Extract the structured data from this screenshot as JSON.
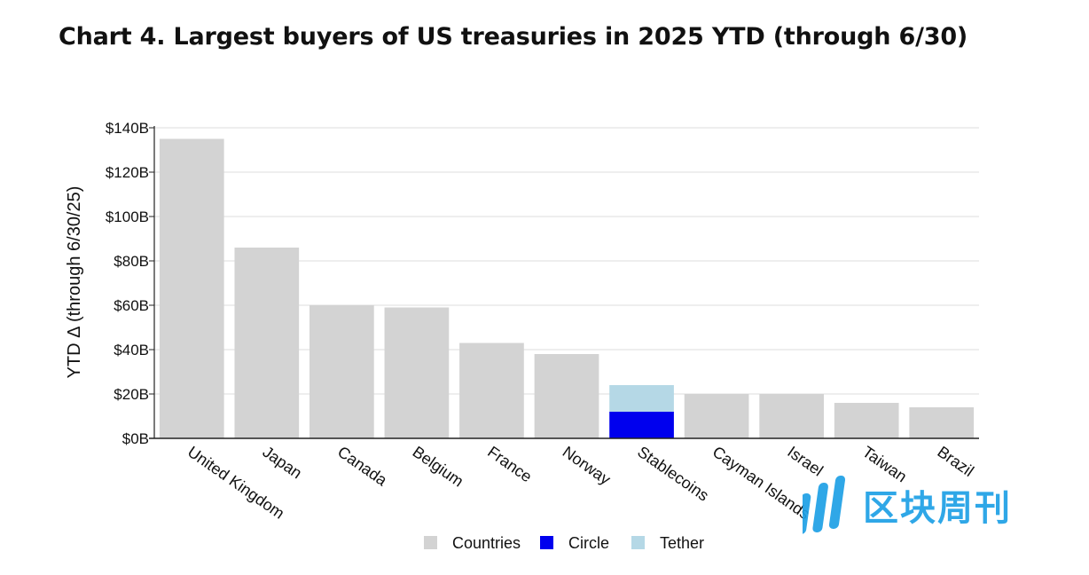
{
  "title": "Chart 4. Largest buyers of US treasuries in 2025 YTD (through 6/30)",
  "watermark": {
    "text": "区块周刊"
  },
  "colors": {
    "countries": "#d3d3d3",
    "circle": "#0000ee",
    "tether": "#b5d8e6",
    "grid": "#dddddd",
    "axis": "#222222"
  },
  "chart_data": {
    "type": "bar",
    "stacked": true,
    "title": "Chart 4. Largest buyers of US treasuries in 2025 YTD (through 6/30)",
    "xlabel": "",
    "ylabel": "YTD Δ (through 6/30/25)",
    "ylim": [
      0,
      140
    ],
    "yticks": [
      0,
      20,
      40,
      60,
      80,
      100,
      120,
      140
    ],
    "ytick_labels": [
      "$0B",
      "$20B",
      "$40B",
      "$60B",
      "$80B",
      "$100B",
      "$120B",
      "$140B"
    ],
    "grid": true,
    "legend_position": "bottom-center",
    "categories": [
      "United Kingdom",
      "Japan",
      "Canada",
      "Belgium",
      "France",
      "Norway",
      "Stablecoins",
      "Cayman Islands",
      "Israel",
      "Taiwan",
      "Brazil"
    ],
    "series": [
      {
        "name": "Countries",
        "color": "#d3d3d3",
        "values": [
          135,
          86,
          60,
          59,
          43,
          38,
          0,
          20,
          20,
          16,
          14
        ]
      },
      {
        "name": "Circle",
        "color": "#0000ee",
        "values": [
          0,
          0,
          0,
          0,
          0,
          0,
          12,
          0,
          0,
          0,
          0
        ]
      },
      {
        "name": "Tether",
        "color": "#b5d8e6",
        "values": [
          0,
          0,
          0,
          0,
          0,
          0,
          12,
          0,
          0,
          0,
          0
        ]
      }
    ]
  }
}
